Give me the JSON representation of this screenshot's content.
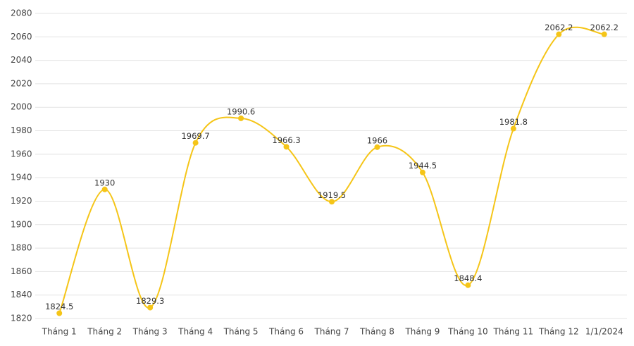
{
  "chart_data": {
    "type": "line",
    "categories": [
      "Tháng 1",
      "Tháng 2",
      "Tháng 3",
      "Tháng 4",
      "Tháng 5",
      "Tháng 6",
      "Tháng 7",
      "Tháng 8",
      "Tháng 9",
      "Tháng 10",
      "Tháng 11",
      "Tháng 12",
      "1/1/2024"
    ],
    "values": [
      1824.5,
      1930,
      1829.3,
      1969.7,
      1990.6,
      1966.3,
      1919.5,
      1966,
      1944.5,
      1848.4,
      1981.8,
      2062.2,
      2062.2
    ],
    "color": "#f5c518",
    "ylim": [
      1820,
      2080
    ],
    "yticks": [
      1820,
      1840,
      1860,
      1880,
      1900,
      1920,
      1940,
      1960,
      1980,
      2000,
      2020,
      2040,
      2060,
      2080
    ],
    "grid": true
  }
}
